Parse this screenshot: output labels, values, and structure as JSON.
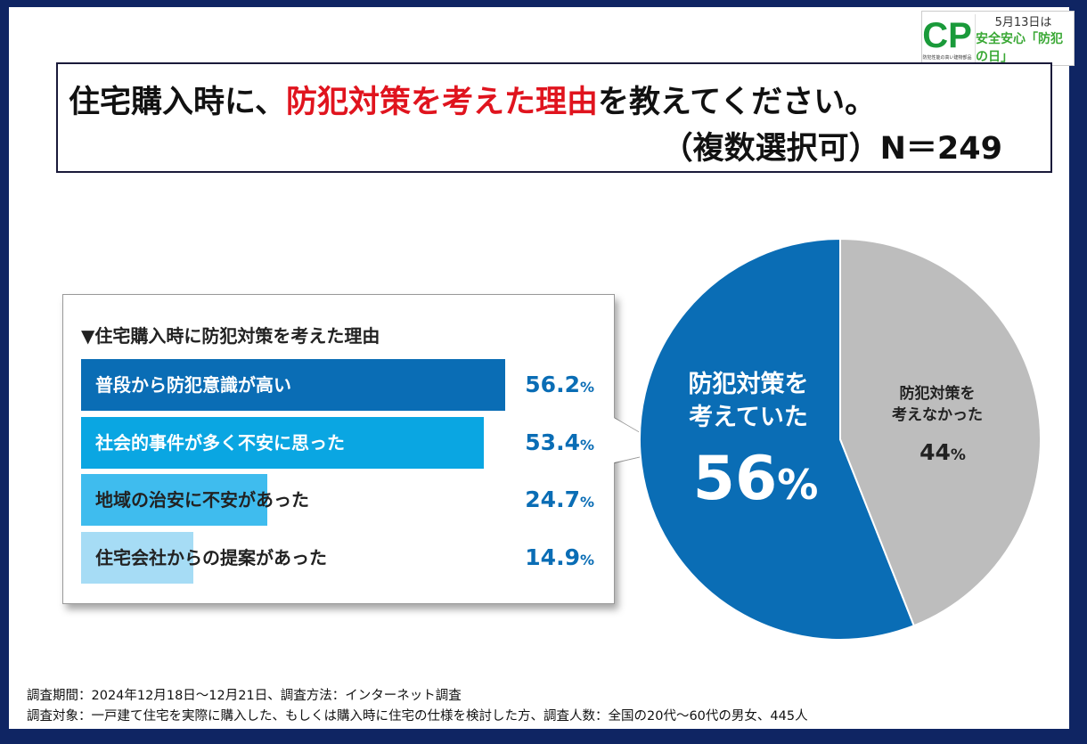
{
  "logo": {
    "text": "CP",
    "subtext": "防犯性能の高い建物部品",
    "date": "5月13日は",
    "slogan": "安全安心「防犯の日」"
  },
  "title": {
    "part1": "住宅購入時に、",
    "highlight": "防犯対策を考えた理由",
    "part2": "を教えてください。",
    "line2": "（複数選択可）N＝249"
  },
  "colors": {
    "bar1": "#0a6db5",
    "bar2": "#0aa6e2",
    "bar3": "#3fbcee",
    "bar4": "#a6dcf5",
    "pie_yes": "#0a6db5",
    "pie_no": "#bdbdbd",
    "accent": "#e0141e"
  },
  "chart_data": [
    {
      "type": "bar",
      "title": "▼住宅購入時に防犯対策を考えた理由",
      "categories": [
        "普段から防犯意識が高い",
        "社会的事件が多く不安に思った",
        "地域の治安に不安があった",
        "住宅会社からの提案があった"
      ],
      "values": [
        56.2,
        53.4,
        24.7,
        14.9
      ],
      "value_labels": [
        "56.2",
        "53.4",
        "24.7",
        "14.9"
      ],
      "unit": "%",
      "orientation": "horizontal"
    },
    {
      "type": "pie",
      "slices": [
        {
          "label_line1": "防犯対策を",
          "label_line2": "考えていた",
          "value": 56,
          "value_label": "56"
        },
        {
          "label_line1": "防犯対策を",
          "label_line2": "考えなかった",
          "value": 44,
          "value_label": "44"
        }
      ],
      "unit": "%",
      "start": "top"
    }
  ],
  "footer": {
    "line1": "調査期間：2024年12月18日～12月21日、調査方法：インターネット調査",
    "line2": "調査対象：一戸建て住宅を実際に購入した、もしくは購入時に住宅の仕様を検討した方、調査人数：全国の20代～60代の男女、445人"
  }
}
